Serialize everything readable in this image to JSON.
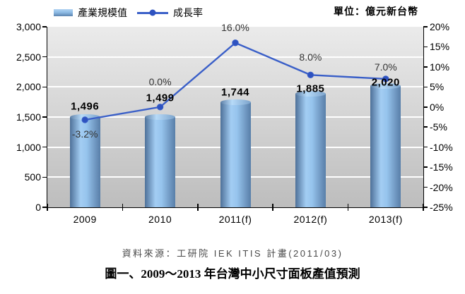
{
  "legend": {
    "items": [
      {
        "label": "產業規模值",
        "swatch": "bar-gradient-blue-icon"
      },
      {
        "label": "成長率",
        "swatch": "line-with-marker-blue-icon"
      }
    ]
  },
  "unit_label": "單位：億元新台幣",
  "source_note": "資料來源：工研院 IEK ITIS 計畫(2011/03)",
  "caption": "圖一、2009～2013 年台灣中小尺寸面板產值預測",
  "colors": {
    "line": "#3A5FC8",
    "marker": "#2E52C0",
    "gridline": "#FFFFFF",
    "axis": "#000000",
    "plot_bg_top": "#EBEBEB",
    "plot_bg_bottom": "#BDBDBD",
    "bar_edge": "#4E7199",
    "bar_highlight": "#A3CDF3"
  },
  "chart_data": {
    "type": "combo (bar + line)",
    "categories": [
      "2009",
      "2010",
      "2011(f)",
      "2012(f)",
      "2013(f)"
    ],
    "series": [
      {
        "name": "產業規模值",
        "type": "bar",
        "axis": "left",
        "values": [
          1496,
          1499,
          1744,
          1885,
          2020
        ],
        "data_labels": [
          "1,496",
          "1,499",
          "1,744",
          "1,885",
          "2,020"
        ]
      },
      {
        "name": "成長率",
        "type": "line",
        "axis": "right",
        "values": [
          -3.2,
          0.0,
          16.0,
          8.0,
          7.0
        ],
        "data_labels": [
          "-3.2%",
          "0.0%",
          "16.0%",
          "8.0%",
          "7.0%"
        ]
      }
    ],
    "left_axis": {
      "min": 0,
      "max": 3000,
      "step": 500,
      "tick_labels": [
        "0",
        "500",
        "1,000",
        "1,500",
        "2,000",
        "2,500",
        "3,000"
      ]
    },
    "right_axis": {
      "min": -25,
      "max": 20,
      "step": 5,
      "tick_labels": [
        "-25%",
        "-20%",
        "-15%",
        "-10%",
        "-5%",
        "0%",
        "5%",
        "10%",
        "15%",
        "20%"
      ]
    },
    "grid": {
      "horizontal_white_lines_at_left_axis_steps": true
    },
    "legend_position": "top-left",
    "label_layout_hints": {
      "bar_label_dy": [
        -15,
        -27,
        -14,
        -7,
        -5
      ],
      "line_label_dy": [
        20,
        -36,
        -22,
        -25,
        -17
      ]
    }
  }
}
